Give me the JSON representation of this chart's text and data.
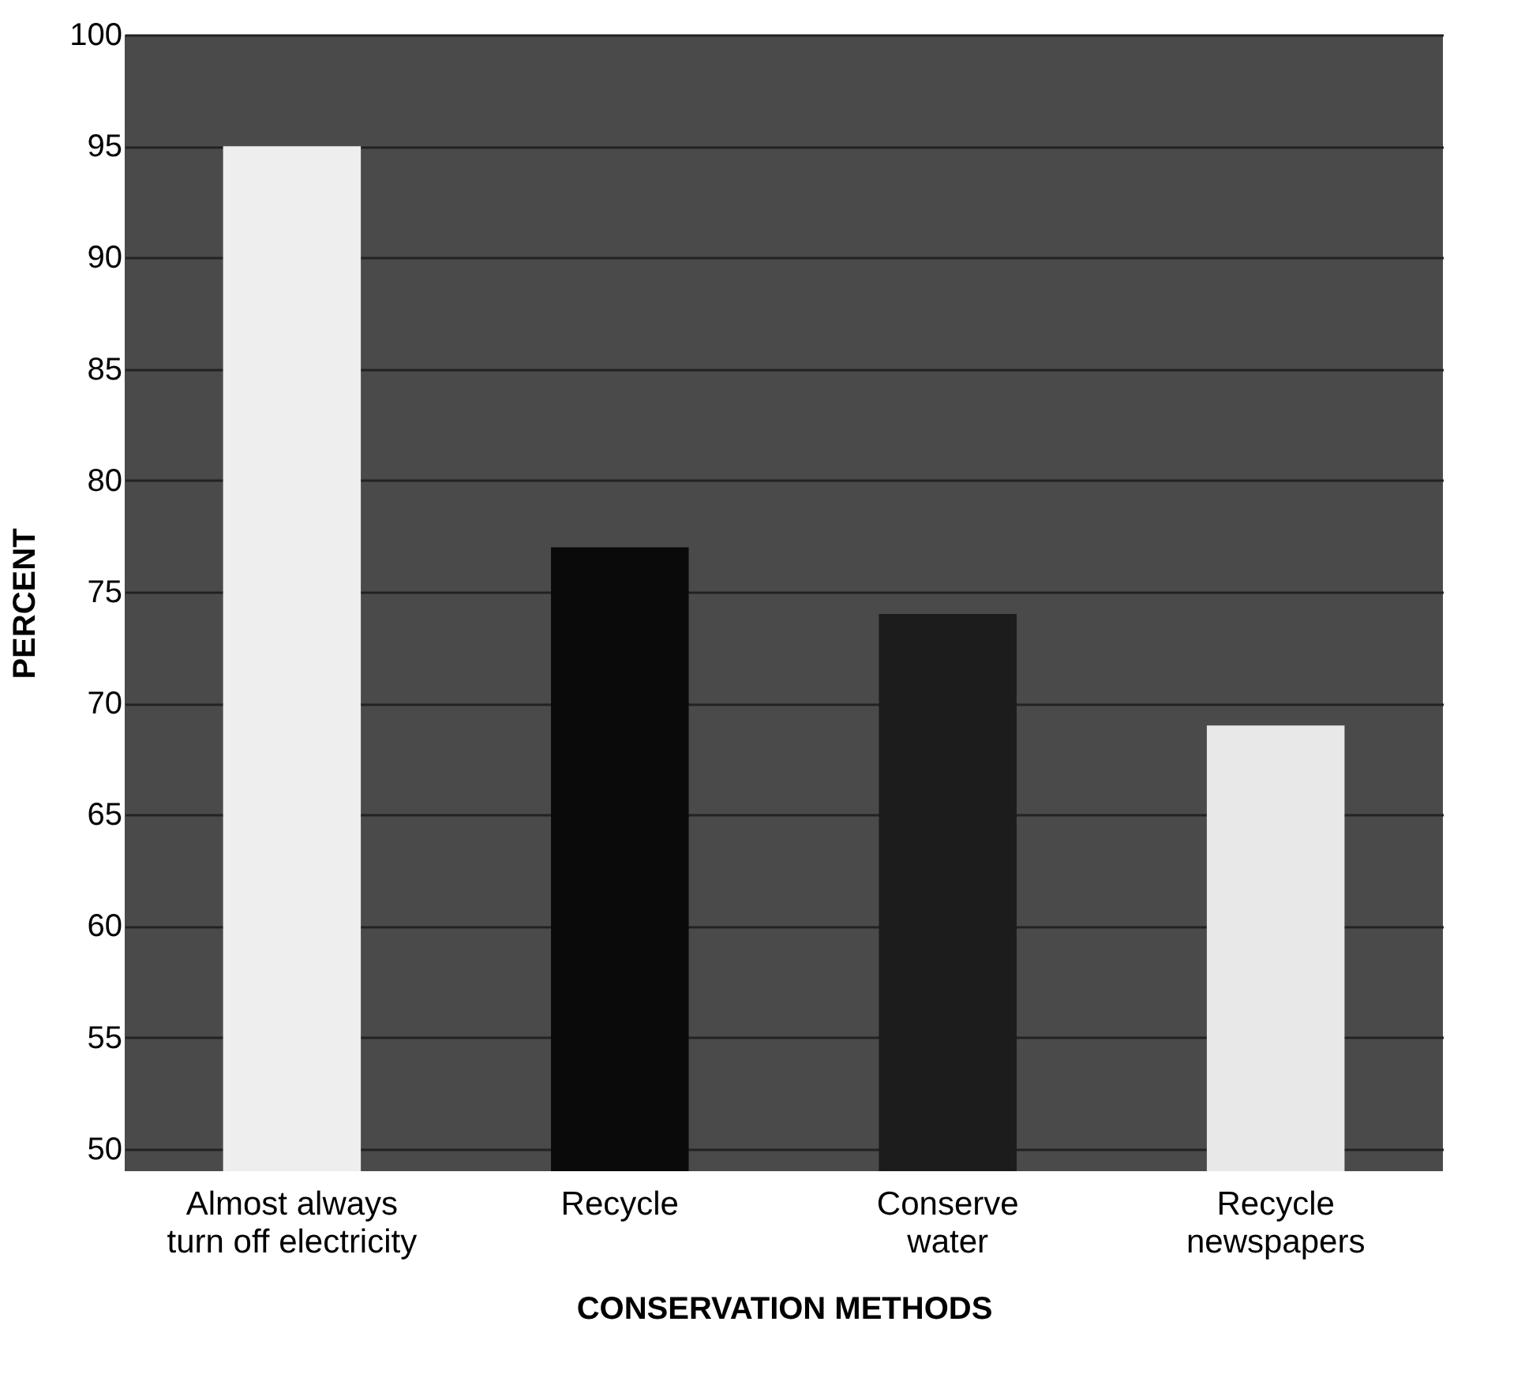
{
  "chart_data": {
    "type": "bar",
    "xlabel": "CONSERVATION METHODS",
    "ylabel": "PERCENT",
    "categories": [
      "Almost always\nturn off electricity",
      "Recycle",
      "Conserve\nwater",
      "Recycle\nnewspapers"
    ],
    "values": [
      95,
      77,
      74,
      69
    ],
    "colors": [
      "#eeeeee",
      "#0a0a0a",
      "#1c1c1c",
      "#e8e8e8"
    ],
    "ylim": [
      49,
      100
    ],
    "yticks": [
      50,
      55,
      60,
      65,
      70,
      75,
      80,
      85,
      90,
      95,
      100
    ],
    "grid": "y"
  }
}
